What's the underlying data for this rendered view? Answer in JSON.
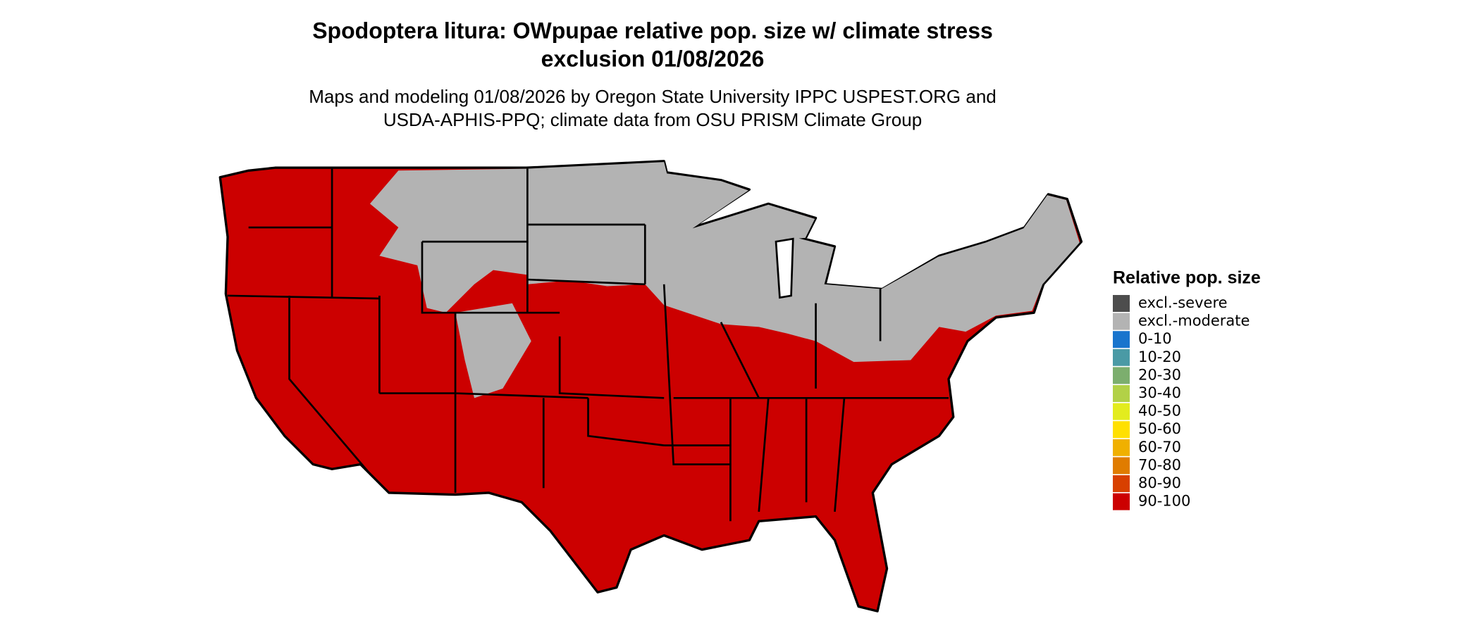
{
  "title": [
    "Spodoptera litura: OWpupae relative pop. size w/ climate stress",
    "exclusion 01/08/2026"
  ],
  "subtitle": [
    "Maps and modeling 01/08/2026 by Oregon State University IPPC USPEST.ORG and",
    "USDA-APHIS-PPQ; climate data from OSU PRISM Climate Group"
  ],
  "legend": {
    "title": "Relative pop. size",
    "items": [
      {
        "label": "excl.-severe",
        "color": "#4d4d4d"
      },
      {
        "label": "excl.-moderate",
        "color": "#b3b3b3"
      },
      {
        "label": "0-10",
        "color": "#1874cd"
      },
      {
        "label": "10-20",
        "color": "#4a9aa5"
      },
      {
        "label": "20-30",
        "color": "#7cae6e"
      },
      {
        "label": "30-40",
        "color": "#b2d147"
      },
      {
        "label": "40-50",
        "color": "#e3ec1e"
      },
      {
        "label": "50-60",
        "color": "#ffe000"
      },
      {
        "label": "60-70",
        "color": "#f0b000"
      },
      {
        "label": "70-80",
        "color": "#e07c00"
      },
      {
        "label": "80-90",
        "color": "#d84000"
      },
      {
        "label": "90-100",
        "color": "#cc0000"
      }
    ]
  }
}
